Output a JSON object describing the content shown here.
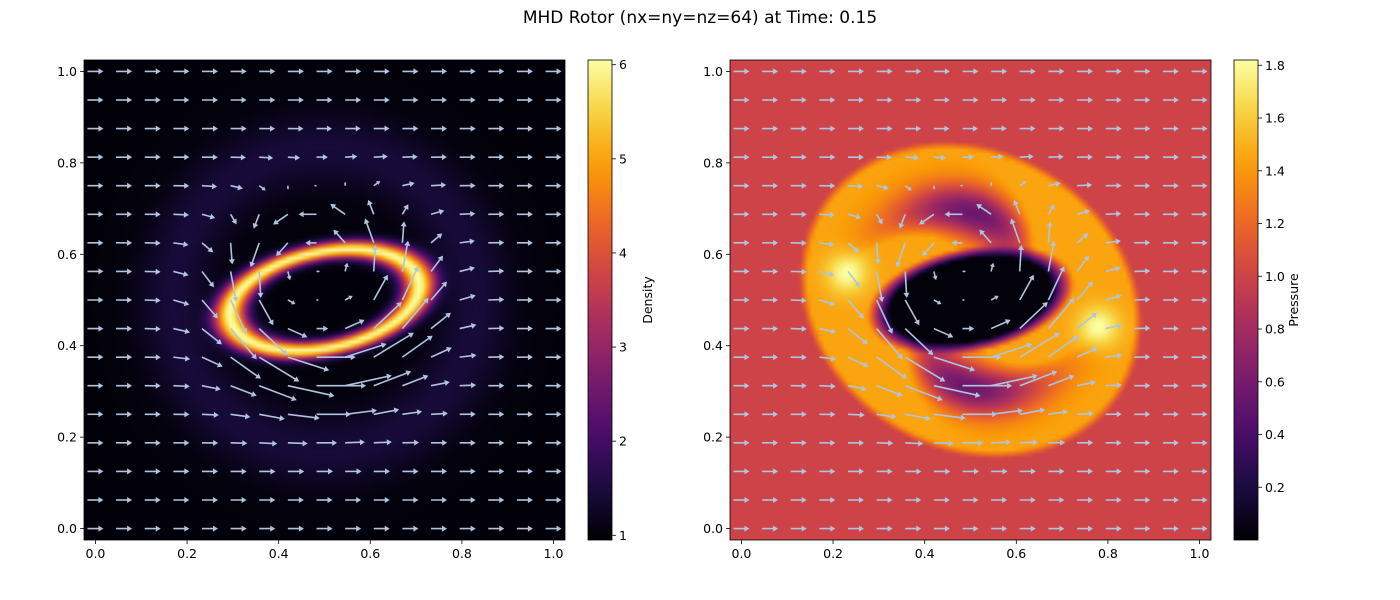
{
  "figure": {
    "title": "MHD Rotor (nx=ny=nz=64) at Time: 0.15"
  },
  "colors": {
    "arrow": "#b0c4de",
    "inferno": [
      "#000004",
      "#1b0c41",
      "#4a0c6b",
      "#781c6d",
      "#a52c60",
      "#cf4446",
      "#ed6925",
      "#fb9b06",
      "#f7d13d",
      "#fcffa4"
    ]
  },
  "chart_data": [
    {
      "type": "heatmap",
      "field": "density",
      "colormap": "inferno",
      "colorbar_label": "Density",
      "xlim": [
        -0.025,
        1.025
      ],
      "ylim": [
        -0.025,
        1.025
      ],
      "xticks": [
        "0.0",
        "0.2",
        "0.4",
        "0.6",
        "0.8",
        "1.0"
      ],
      "yticks": [
        "0.0",
        "0.2",
        "0.4",
        "0.6",
        "0.8",
        "1.0"
      ],
      "clim": [
        0.95,
        6.05
      ],
      "colorbar_ticks": [
        "1",
        "2",
        "3",
        "4",
        "5",
        "6"
      ],
      "colorbar_tick_values": [
        1,
        2,
        3,
        4,
        5,
        6
      ],
      "ambient_value": 1.0,
      "core_value": 1.0,
      "ring_value": 6.0,
      "quiver": "velocity field arrows, 17 x 17 grid"
    },
    {
      "type": "heatmap",
      "field": "pressure",
      "colormap": "inferno",
      "colorbar_label": "Pressure",
      "xlim": [
        -0.025,
        1.025
      ],
      "ylim": [
        -0.025,
        1.025
      ],
      "xticks": [
        "0.0",
        "0.2",
        "0.4",
        "0.6",
        "0.8",
        "1.0"
      ],
      "yticks": [
        "0.0",
        "0.2",
        "0.4",
        "0.6",
        "0.8",
        "1.0"
      ],
      "clim": [
        0.0,
        1.82
      ],
      "colorbar_ticks": [
        "0.2",
        "0.4",
        "0.6",
        "0.8",
        "1.0",
        "1.2",
        "1.4",
        "1.6",
        "1.8"
      ],
      "colorbar_tick_values": [
        0.2,
        0.4,
        0.6,
        0.8,
        1.0,
        1.2,
        1.4,
        1.6,
        1.8
      ],
      "ambient_value": 1.0,
      "core_value": 0.02,
      "shell_value": 1.45,
      "peak_value": 1.82,
      "quiver": "velocity field arrows, 17 x 17 grid"
    }
  ]
}
